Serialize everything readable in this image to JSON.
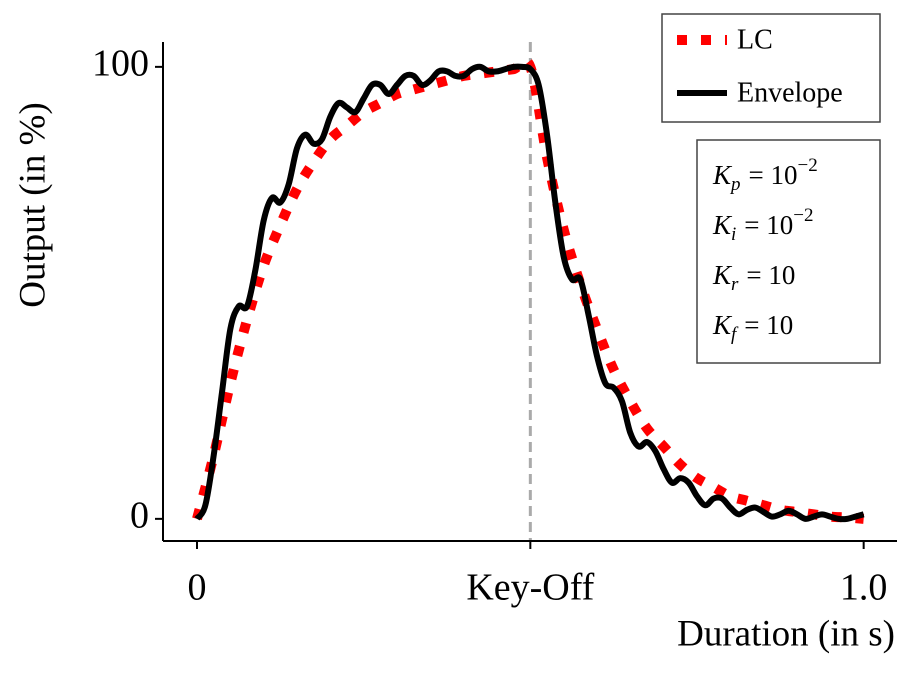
{
  "chart_data": {
    "type": "line",
    "xlabel": "Duration (in s)",
    "ylabel": "Output (in %)",
    "xlim": [
      -0.051,
      1.05
    ],
    "ylim": [
      -4.9,
      105.5
    ],
    "xticks": [
      0,
      {
        "value": 0.5,
        "label": "Key-Off"
      },
      {
        "value": 1,
        "label": "1.0"
      }
    ],
    "yticks": [
      0,
      100
    ],
    "vlines": [
      {
        "x": 0.5,
        "color": "#aaaaaa"
      }
    ],
    "legend": "upper right",
    "series": [
      {
        "name": "LC",
        "color": "#ff0000",
        "style": "dotted",
        "x": [
          0,
          0.025,
          0.05,
          0.075,
          0.1,
          0.125,
          0.15,
          0.175,
          0.2,
          0.225,
          0.25,
          0.275,
          0.3,
          0.325,
          0.35,
          0.375,
          0.4,
          0.425,
          0.45,
          0.475,
          0.5,
          0.525,
          0.55,
          0.575,
          0.6,
          0.625,
          0.65,
          0.675,
          0.7,
          0.725,
          0.75,
          0.775,
          0.8,
          0.825,
          0.85,
          0.875,
          0.9,
          0.925,
          0.95,
          0.975,
          1.0
        ],
        "values": [
          0,
          14,
          30,
          44,
          56,
          65,
          73,
          79,
          84,
          87,
          90,
          92,
          94,
          95,
          96,
          97,
          98,
          98.5,
          99,
          99.5,
          100,
          80,
          64,
          52,
          42,
          33,
          26,
          20,
          16,
          12,
          9,
          7,
          5,
          4,
          3,
          2,
          1.5,
          1,
          0.5,
          0.3,
          0
        ]
      },
      {
        "name": "Envelope",
        "color": "#000000",
        "style": "solid",
        "x": [
          0,
          0.0125,
          0.025,
          0.0375,
          0.05,
          0.0625,
          0.075,
          0.0875,
          0.1,
          0.1125,
          0.125,
          0.1375,
          0.15,
          0.1625,
          0.175,
          0.1875,
          0.2,
          0.2125,
          0.225,
          0.2375,
          0.25,
          0.2625,
          0.275,
          0.2875,
          0.3,
          0.3125,
          0.325,
          0.3375,
          0.35,
          0.3625,
          0.375,
          0.3875,
          0.4,
          0.4125,
          0.425,
          0.4375,
          0.45,
          0.4625,
          0.475,
          0.4875,
          0.5,
          0.5125,
          0.525,
          0.5375,
          0.55,
          0.5625,
          0.575,
          0.5875,
          0.6,
          0.6125,
          0.625,
          0.6375,
          0.65,
          0.6625,
          0.675,
          0.6875,
          0.7,
          0.7125,
          0.725,
          0.7375,
          0.75,
          0.7625,
          0.775,
          0.7875,
          0.8,
          0.8125,
          0.825,
          0.8375,
          0.85,
          0.8625,
          0.875,
          0.8875,
          0.9,
          0.9125,
          0.925,
          0.9375,
          0.95,
          0.9625,
          0.975,
          0.9875,
          1.0
        ],
        "values": [
          0,
          3,
          14,
          28,
          42,
          47,
          47,
          55,
          66,
          71,
          70,
          74,
          82,
          85,
          83,
          84,
          89,
          92,
          91,
          90,
          93,
          96,
          96,
          94,
          96,
          98,
          98,
          96,
          97,
          99,
          99,
          98,
          98,
          99.5,
          100,
          99,
          99,
          99.5,
          100,
          100,
          99.5,
          96,
          85,
          70,
          58,
          53,
          53,
          45,
          36,
          30,
          29,
          26,
          19,
          16,
          17,
          15,
          11,
          8,
          9,
          8,
          5,
          3,
          4.5,
          4.5,
          2.5,
          1,
          2,
          2.5,
          1.5,
          0.5,
          1,
          1.8,
          1,
          0,
          0.5,
          1,
          0.5,
          0,
          0,
          0.5,
          1
        ]
      }
    ],
    "annotations": [
      {
        "symbol": "K",
        "sub": "p",
        "rhs": "= 10",
        "sup": "−2"
      },
      {
        "symbol": "K",
        "sub": "i",
        "rhs": "= 10",
        "sup": "−2"
      },
      {
        "symbol": "K",
        "sub": "r",
        "rhs": "= 10"
      },
      {
        "symbol": "K",
        "sub": "f",
        "rhs": "= 10"
      }
    ]
  }
}
